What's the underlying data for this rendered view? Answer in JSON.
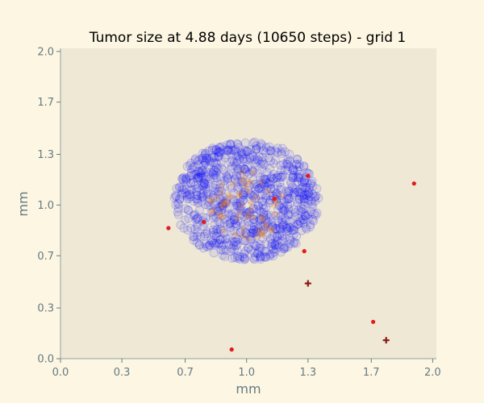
{
  "chart_data": {
    "type": "scatter",
    "title": "Tumor size at 4.88 days (10650 steps) - grid 1",
    "xlabel": "mm",
    "ylabel": "mm",
    "xlim": [
      0,
      2.02
    ],
    "ylim": [
      0,
      2.02
    ],
    "x_ticks": [
      0.0,
      0.33,
      0.67,
      1.0,
      1.33,
      1.67,
      2.0
    ],
    "x_tick_labels": [
      "0.0",
      "0.3",
      "0.7",
      "1.0",
      "1.3",
      "1.7",
      "2.0"
    ],
    "y_ticks": [
      0.0,
      0.33,
      0.67,
      1.0,
      1.33,
      1.67,
      2.0
    ],
    "y_tick_labels": [
      "0.0",
      "0.3",
      "0.7",
      "1.0",
      "1.3",
      "1.7",
      "2.0"
    ],
    "grid": false,
    "plot_background": "#eee8d5",
    "figure_background": "#fdf6e3",
    "series": [
      {
        "marker": "circle-open",
        "color": "#0000ff",
        "cluster_center": [
          1.0,
          1.03
        ],
        "cluster_radius": 0.39,
        "point_count": 900
      },
      {
        "marker": "circle",
        "color": "#ff8c00",
        "cluster_center": [
          1.0,
          1.0
        ],
        "cluster_radius": 0.22,
        "point_count": 60
      },
      {
        "marker": "dot",
        "color": "#e31a1c",
        "points": [
          [
            0.58,
            0.85
          ],
          [
            0.77,
            0.89
          ],
          [
            1.15,
            1.04
          ],
          [
            1.33,
            1.19
          ],
          [
            1.9,
            1.14
          ],
          [
            1.31,
            0.7
          ],
          [
            1.68,
            0.24
          ],
          [
            0.92,
            0.06
          ]
        ]
      },
      {
        "marker": "plus",
        "color": "#8b1a1a",
        "points": [
          [
            1.33,
            0.49
          ],
          [
            1.75,
            0.12
          ]
        ]
      }
    ]
  }
}
